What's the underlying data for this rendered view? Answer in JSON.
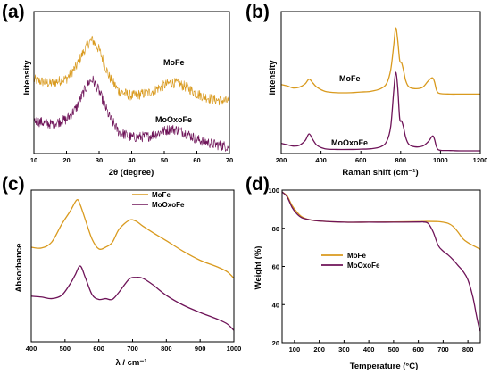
{
  "colors": {
    "mofe": "#d99a1e",
    "moxofe": "#6e1358"
  },
  "chart_data": [
    {
      "panel": "(a)",
      "type": "line",
      "xlabel": "2θ (degree)",
      "ylabel": "Intensity",
      "xlim": [
        10,
        70
      ],
      "xticks": [
        10,
        20,
        30,
        40,
        50,
        60,
        70
      ],
      "series": [
        {
          "name": "MoFe",
          "x": [
            10,
            15,
            20,
            23,
            25,
            27,
            28,
            30,
            33,
            36,
            40,
            45,
            50,
            52,
            54,
            57,
            60,
            65,
            70
          ],
          "values": [
            3.9,
            3.7,
            3.95,
            4.6,
            5.3,
            5.9,
            6.0,
            5.5,
            4.1,
            3.3,
            3.05,
            3.2,
            3.6,
            3.75,
            3.7,
            3.5,
            3.15,
            2.85,
            2.75
          ]
        },
        {
          "name": "MoOxoFe",
          "x": [
            10,
            15,
            20,
            23,
            25,
            27,
            28,
            30,
            33,
            36,
            40,
            45,
            50,
            52,
            54,
            57,
            60,
            65,
            70
          ],
          "values": [
            1.75,
            1.55,
            1.8,
            2.4,
            3.15,
            3.8,
            3.9,
            3.3,
            2.0,
            1.15,
            0.85,
            0.9,
            1.2,
            1.3,
            1.25,
            1.05,
            0.75,
            0.5,
            0.35
          ]
        }
      ]
    },
    {
      "panel": "(b)",
      "type": "line",
      "xlabel": "Raman shift (cm⁻¹)",
      "ylabel": "Intensity",
      "xlim": [
        200,
        1200
      ],
      "xticks": [
        200,
        400,
        600,
        800,
        1000,
        1200
      ],
      "series": [
        {
          "name": "MoFe",
          "x": [
            200,
            230,
            260,
            290,
            320,
            340,
            360,
            380,
            420,
            480,
            550,
            600,
            650,
            700,
            730,
            750,
            765,
            775,
            785,
            795,
            805,
            815,
            825,
            840,
            870,
            910,
            940,
            960,
            970,
            980,
            995,
            1050,
            1100,
            1200
          ],
          "values": [
            5.1,
            5.0,
            4.85,
            4.9,
            5.15,
            5.5,
            5.2,
            4.9,
            4.6,
            4.5,
            4.5,
            4.55,
            4.6,
            4.8,
            5.2,
            6.2,
            8.0,
            9.3,
            8.4,
            6.9,
            6.7,
            6.1,
            5.4,
            4.95,
            4.8,
            4.9,
            5.4,
            5.6,
            5.3,
            4.7,
            4.45,
            4.4,
            4.4,
            4.4
          ]
        },
        {
          "name": "MoOxoFe",
          "x": [
            200,
            230,
            260,
            290,
            320,
            340,
            360,
            380,
            420,
            480,
            550,
            600,
            650,
            700,
            730,
            750,
            765,
            775,
            785,
            795,
            805,
            815,
            825,
            840,
            870,
            910,
            940,
            960,
            970,
            980,
            995,
            1050,
            1100,
            1200
          ],
          "values": [
            0.75,
            0.65,
            0.55,
            0.6,
            0.95,
            1.45,
            1.0,
            0.6,
            0.35,
            0.3,
            0.3,
            0.32,
            0.35,
            0.5,
            0.9,
            2.0,
            4.6,
            6.0,
            4.9,
            2.6,
            2.4,
            1.9,
            1.2,
            0.7,
            0.5,
            0.55,
            0.9,
            1.3,
            1.05,
            0.5,
            0.25,
            0.22,
            0.2,
            0.2
          ]
        }
      ]
    },
    {
      "panel": "(c)",
      "type": "line",
      "xlabel": "λ / cm⁻¹",
      "ylabel": "Absorbance",
      "xlim": [
        400,
        1000
      ],
      "xticks": [
        400,
        500,
        600,
        700,
        800,
        900,
        1000
      ],
      "legend_position": "top-right",
      "series": [
        {
          "name": "MoFe",
          "x": [
            400,
            430,
            460,
            490,
            515,
            535,
            545,
            560,
            580,
            600,
            620,
            640,
            660,
            690,
            710,
            730,
            760,
            800,
            850,
            900,
            950,
            980,
            1000
          ],
          "values": [
            6.3,
            6.25,
            6.6,
            7.7,
            8.5,
            9.2,
            8.9,
            8.0,
            6.8,
            6.2,
            6.3,
            6.6,
            7.4,
            7.95,
            7.9,
            7.6,
            7.2,
            6.7,
            6.05,
            5.5,
            5.1,
            4.8,
            4.4
          ]
        },
        {
          "name": "MoOxoFe",
          "x": [
            400,
            430,
            460,
            490,
            515,
            530,
            545,
            560,
            580,
            600,
            620,
            640,
            660,
            690,
            710,
            730,
            760,
            800,
            850,
            900,
            950,
            980,
            1000
          ],
          "values": [
            3.3,
            3.25,
            3.15,
            3.35,
            4.05,
            4.6,
            5.15,
            4.45,
            3.4,
            3.1,
            3.15,
            3.1,
            3.55,
            4.35,
            4.45,
            4.4,
            4.0,
            3.35,
            2.75,
            2.3,
            1.9,
            1.6,
            1.2
          ]
        }
      ]
    },
    {
      "panel": "(d)",
      "type": "line",
      "xlabel": "Temperature (°C)",
      "ylabel": "Weight (%)",
      "xlim": [
        50,
        850
      ],
      "ylim": [
        20,
        100
      ],
      "xticks": [
        100,
        200,
        300,
        400,
        500,
        600,
        700,
        800
      ],
      "yticks": [
        20,
        40,
        60,
        80,
        100
      ],
      "legend_position": "center-right",
      "series": [
        {
          "name": "MoFe",
          "x": [
            50,
            70,
            90,
            110,
            130,
            160,
            200,
            300,
            400,
            500,
            600,
            640,
            680,
            700,
            720,
            740,
            760,
            780,
            800,
            820,
            850
          ],
          "values": [
            99,
            97,
            92,
            88.5,
            86,
            84.5,
            83.8,
            83.2,
            83.2,
            83.3,
            83.5,
            83.6,
            83.5,
            83.2,
            82.6,
            81,
            78,
            74.5,
            72.5,
            71,
            69
          ]
        },
        {
          "name": "MoOxoFe",
          "x": [
            50,
            70,
            90,
            110,
            130,
            160,
            200,
            300,
            400,
            500,
            600,
            620,
            640,
            660,
            680,
            700,
            720,
            740,
            760,
            780,
            800,
            820,
            835,
            845,
            850
          ],
          "values": [
            99,
            96.5,
            91,
            87.5,
            85.5,
            84.5,
            83.8,
            83.2,
            83.2,
            83.2,
            83.3,
            83.3,
            82.5,
            78,
            71,
            68,
            66,
            63.5,
            60.5,
            57.5,
            53,
            44,
            34,
            28,
            26
          ]
        }
      ]
    }
  ]
}
